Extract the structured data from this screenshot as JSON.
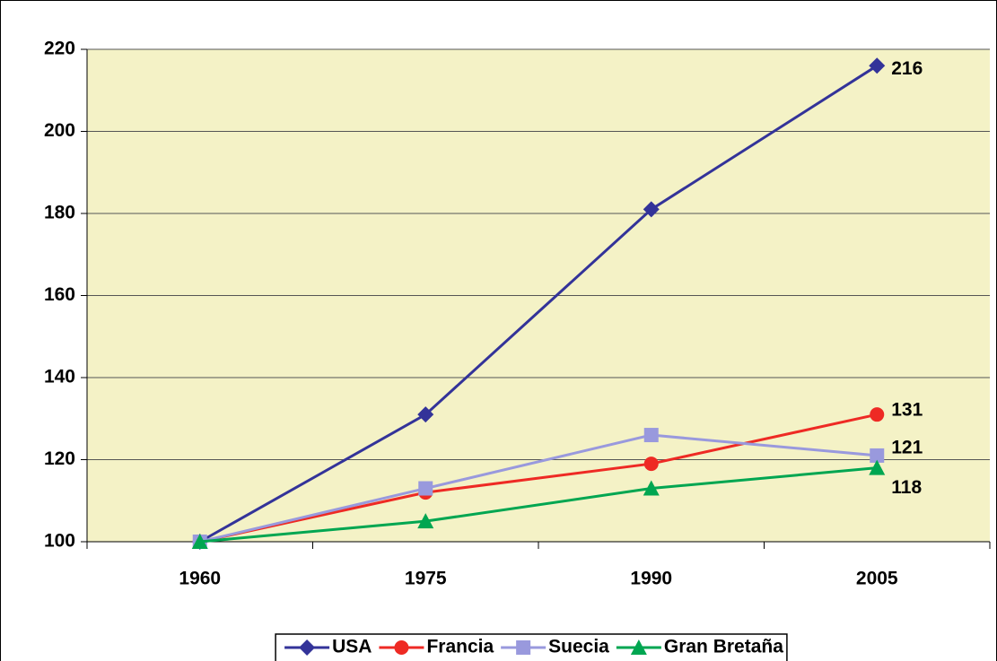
{
  "chart_data": {
    "type": "line",
    "categories": [
      "1960",
      "1975",
      "1990",
      "2005"
    ],
    "series": [
      {
        "name": "USA",
        "color": "#333399",
        "marker": "diamond",
        "values": [
          100,
          131,
          181,
          216
        ]
      },
      {
        "name": "Francia",
        "color": "#ee2a24",
        "marker": "circle",
        "values": [
          100,
          112,
          119,
          131
        ]
      },
      {
        "name": "Suecia",
        "color": "#9999dd",
        "marker": "square",
        "values": [
          100,
          113,
          126,
          121
        ]
      },
      {
        "name": "Gran Bretaña",
        "color": "#00a651",
        "marker": "triangle",
        "values": [
          100,
          105,
          113,
          118
        ]
      }
    ],
    "ylim": [
      100,
      220
    ],
    "yticks": [
      100,
      120,
      140,
      160,
      180,
      200,
      220
    ],
    "grid": true,
    "data_labels": "last",
    "legend": "bottom"
  }
}
